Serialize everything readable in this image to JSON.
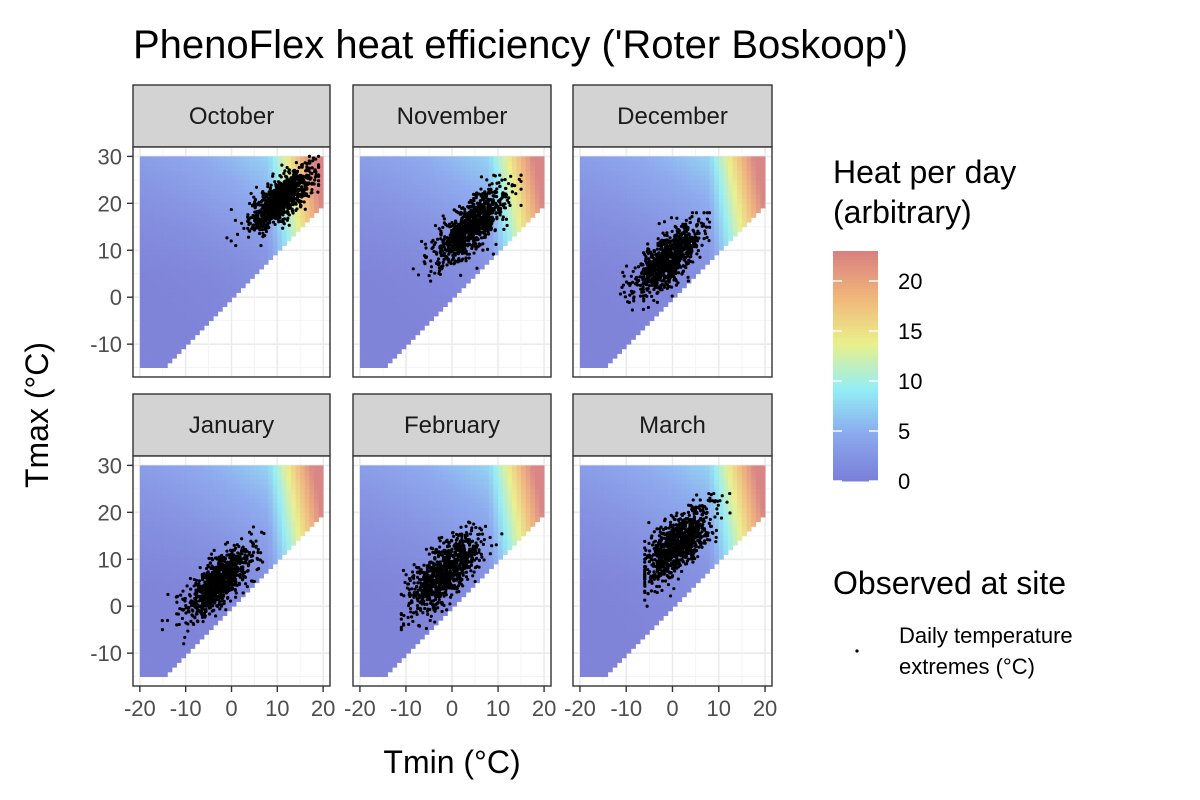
{
  "chart_data": {
    "type": "heatmap",
    "title": "PhenoFlex heat efficiency ('Roter Boskoop')",
    "xlabel": "Tmin (°C)",
    "ylabel": "Tmax (°C)",
    "xlim": [
      -21.5,
      21.5
    ],
    "ylim": [
      -17,
      32
    ],
    "x_ticks": [
      -20,
      -10,
      0,
      10,
      20
    ],
    "x_tick_labels": [
      "-20",
      "-10",
      "0",
      "10",
      "20"
    ],
    "y_ticks": [
      -10,
      0,
      10,
      20,
      30
    ],
    "y_tick_labels": [
      "-10",
      "0",
      "10",
      "20",
      "30"
    ],
    "grid": true,
    "heat_surface": {
      "description_of_domain": "Tmax >= Tmin",
      "tmin_range": [
        -20,
        20
      ],
      "tmax_range": [
        -15,
        30
      ],
      "fill_range": [
        0,
        23
      ],
      "reference_values": [
        {
          "tmin": -20,
          "tmax": 30,
          "heat": 5
        },
        {
          "tmin": 0,
          "tmax": 30,
          "heat": 9
        },
        {
          "tmin": 15,
          "tmax": 25,
          "heat": 20
        },
        {
          "tmin": 18,
          "tmax": 28,
          "heat": 23
        },
        {
          "tmin": 0,
          "tmax": 10,
          "heat": 2
        },
        {
          "tmin": -10,
          "tmax": 0,
          "heat": 0
        }
      ]
    },
    "panels": [
      {
        "label": "October",
        "points": {
          "center_tmin": 11,
          "center_tmax": 21,
          "spread_tmin": 3.5,
          "spread_tmax": 3.0,
          "n": 900,
          "tmin_range": [
            -1,
            19
          ],
          "tmax_range": [
            11,
            30
          ]
        }
      },
      {
        "label": "November",
        "points": {
          "center_tmin": 4,
          "center_tmax": 15,
          "spread_tmin": 4.0,
          "spread_tmax": 3.6,
          "n": 900,
          "tmin_range": [
            -11,
            15
          ],
          "tmax_range": [
            3,
            26
          ]
        }
      },
      {
        "label": "December",
        "points": {
          "center_tmin": -1,
          "center_tmax": 8,
          "spread_tmin": 3.5,
          "spread_tmax": 3.5,
          "n": 900,
          "tmin_range": [
            -19,
            8
          ],
          "tmax_range": [
            -3,
            18
          ]
        }
      },
      {
        "label": "January",
        "points": {
          "center_tmin": -3,
          "center_tmax": 5,
          "spread_tmin": 3.8,
          "spread_tmax": 3.5,
          "n": 900,
          "tmin_range": [
            -20,
            12
          ],
          "tmax_range": [
            -8,
            17
          ]
        }
      },
      {
        "label": "February",
        "points": {
          "center_tmin": -2,
          "center_tmax": 7,
          "spread_tmin": 3.8,
          "spread_tmax": 4.0,
          "n": 900,
          "tmin_range": [
            -11,
            13
          ],
          "tmax_range": [
            -5,
            21
          ]
        }
      },
      {
        "label": "March",
        "points": {
          "center_tmin": 1,
          "center_tmax": 13,
          "spread_tmin": 3.6,
          "spread_tmax": 4.0,
          "n": 900,
          "tmin_range": [
            -6,
            14
          ],
          "tmax_range": [
            0,
            24
          ]
        }
      }
    ],
    "legend": {
      "fill_title_line1": "Heat per day",
      "fill_title_line2": "(arbitrary)",
      "fill_ticks": [
        0,
        5,
        10,
        15,
        20
      ],
      "fill_tick_labels": [
        "0",
        "5",
        "10",
        "15",
        "20"
      ],
      "points_title": "Observed at site",
      "points_label_line1": "Daily temperature",
      "points_label_line2": "extremes (°C)",
      "placement": "right"
    },
    "colors": {
      "palette": [
        "#7a7ed8",
        "#8aa8ef",
        "#93eef5",
        "#eaf08a",
        "#f0b67a",
        "#d98080"
      ],
      "point": "#000000",
      "strip_fill": "#d3d3d3"
    }
  }
}
